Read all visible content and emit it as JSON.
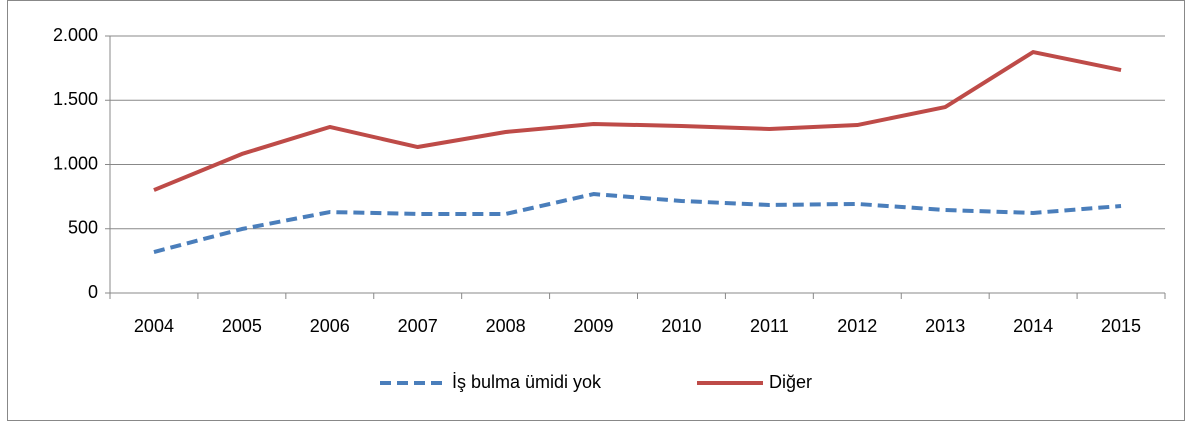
{
  "chart_data": {
    "type": "line",
    "categories": [
      "2004",
      "2005",
      "2006",
      "2007",
      "2008",
      "2009",
      "2010",
      "2011",
      "2012",
      "2013",
      "2014",
      "2015"
    ],
    "series": [
      {
        "name": "İş bulma ümidi yok",
        "color": "#4a7ebb",
        "dash": true,
        "values": [
          319,
          498,
          630,
          615,
          615,
          770,
          716,
          685,
          693,
          646,
          623,
          677
        ]
      },
      {
        "name": "Diğer",
        "color": "#be4b48",
        "dash": false,
        "values": [
          801,
          1082,
          1292,
          1136,
          1253,
          1315,
          1300,
          1276,
          1307,
          1447,
          1875,
          1735
        ]
      }
    ],
    "ylim": [
      0,
      2000
    ],
    "yticks": [
      0,
      500,
      {
        "value": 1000,
        "label": "1.000"
      },
      {
        "value": 1500,
        "label": "1.500"
      },
      {
        "value": 2000,
        "label": "2.000"
      }
    ],
    "grid": true,
    "legend": "bottom"
  }
}
